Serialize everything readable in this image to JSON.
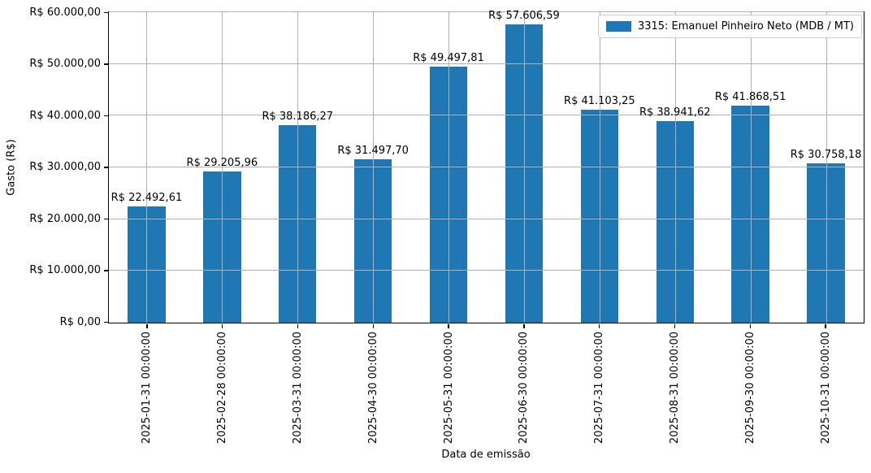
{
  "chart_data": {
    "type": "bar",
    "title": "",
    "xlabel": "Data de emissão",
    "ylabel": "Gasto (R$)",
    "categories": [
      "2025-01-31 00:00:00",
      "2025-02-28 00:00:00",
      "2025-03-31 00:00:00",
      "2025-04-30 00:00:00",
      "2025-05-31 00:00:00",
      "2025-06-30 00:00:00",
      "2025-07-31 00:00:00",
      "2025-08-31 00:00:00",
      "2025-09-30 00:00:00",
      "2025-10-31 00:00:00"
    ],
    "values": [
      22492.61,
      29205.96,
      38186.27,
      31497.7,
      49497.81,
      57606.59,
      41103.25,
      38941.62,
      41868.51,
      30758.18
    ],
    "bar_labels": [
      "R$ 22.492,61",
      "R$ 29.205,96",
      "R$ 38.186,27",
      "R$ 31.497,70",
      "R$ 49.497,81",
      "R$ 57.606,59",
      "R$ 41.103,25",
      "R$ 38.941,62",
      "R$ 41.868,51",
      "R$ 30.758,18"
    ],
    "ytick_labels": [
      "R$ 0,00",
      "R$ 10.000,00",
      "R$ 20.000,00",
      "R$ 30.000,00",
      "R$ 40.000,00",
      "R$ 50.000,00",
      "R$ 60.000,00"
    ],
    "ylim": [
      0,
      60000
    ],
    "grid": true,
    "grid_above_bars": true,
    "bar_color": "#1f77b4",
    "grid_color": "#b0b0b0",
    "legend": {
      "position": "upper right",
      "entries": [
        {
          "label": "3315: Emanuel Pinheiro Neto (MDB / MT)",
          "color": "#1f77b4"
        }
      ]
    }
  }
}
